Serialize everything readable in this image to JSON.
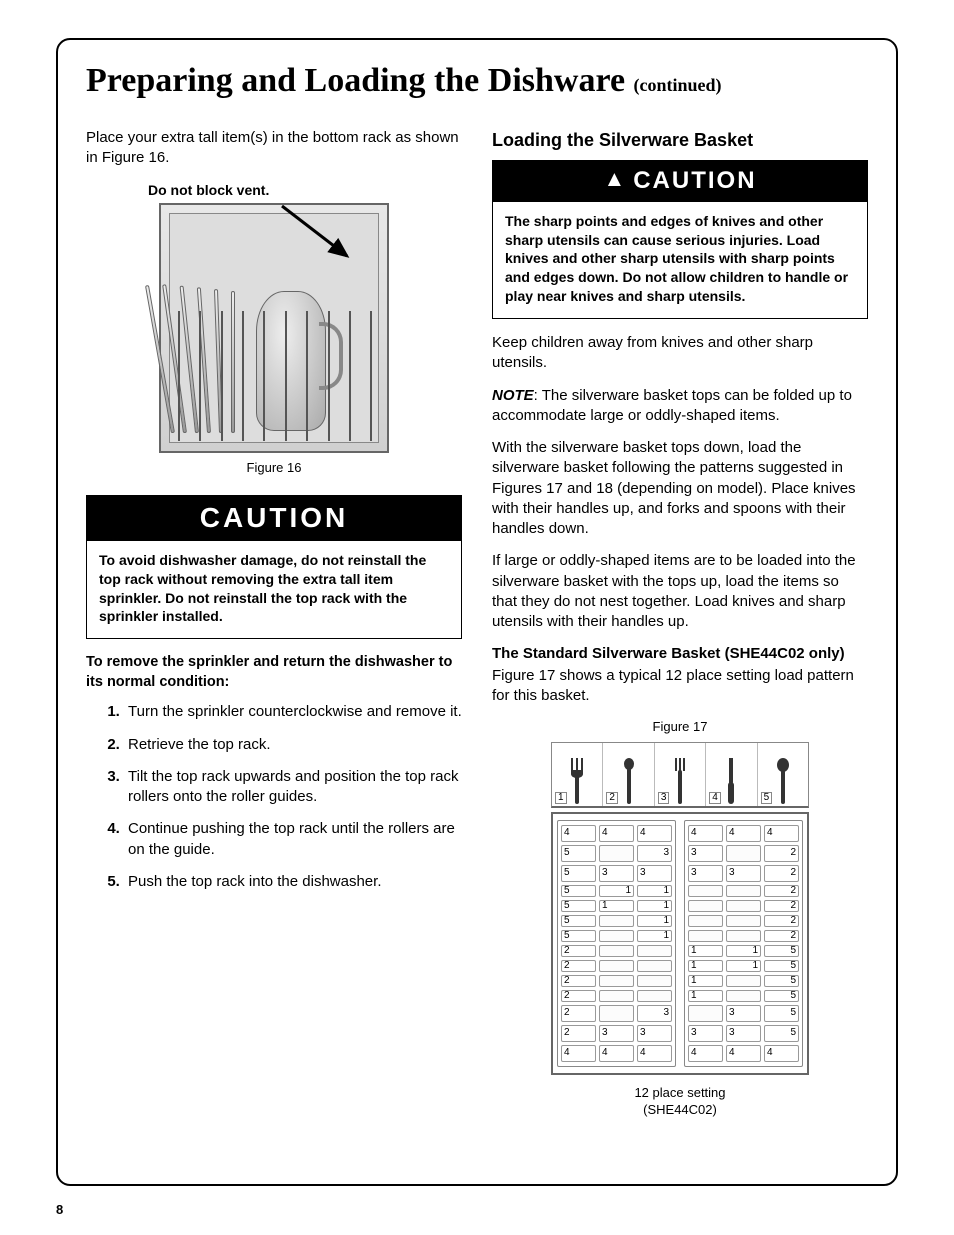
{
  "title_main": "Preparing and Loading the Dishware",
  "title_cont": "(continued)",
  "left": {
    "intro": "Place your extra tall item(s) in the bottom rack as shown in Figure 16.",
    "vent_label": "Do not block vent.",
    "fig16_caption": "Figure 16",
    "caution_label": "CAUTION",
    "caution_body": "To avoid dishwasher damage, do not reinstall the top rack without removing the extra tall item sprinkler. Do not reinstall the top rack with the sprinkler installed.",
    "remove_heading": "To remove the sprinkler and return the dishwasher to its normal condition:",
    "steps": [
      "Turn the sprinkler counterclockwise and remove it.",
      "Retrieve the top rack.",
      "Tilt the top rack upwards and position the top rack rollers onto the roller guides.",
      "Continue pushing the top rack until the rollers are on the guide.",
      "Push the top rack into the dishwasher."
    ]
  },
  "right": {
    "heading": "Loading the Silverware Basket",
    "caution_label": "CAUTION",
    "caution_body": "The sharp points and edges of knives and other sharp utensils can cause serious injuries.  Load knives and other sharp utensils with sharp points and edges down. Do not allow children to handle or play near knives and sharp utensils.",
    "p1": "Keep children away from knives and other sharp utensils.",
    "note_label": "NOTE",
    "note_body": ": The silverware basket tops can be folded up to accommodate large or oddly-shaped items.",
    "p2": "With the silverware basket tops down, load the silverware basket following the patterns suggested in Figures 17 and 18 (depending on model). Place knives with their handles up, and forks and spoons with their handles down.",
    "p3": "If large or oddly-shaped items are to be loaded into the silverware basket with the tops up, load the items so that they do not nest together. Load knives and sharp utensils with their handles up.",
    "sub_heading": "The Standard Silverware Basket (SHE44C02 only)",
    "sub_body": "Figure 17 shows a typical 12 place setting load pattern for this basket.",
    "fig17_top": "Figure 17",
    "legend_nums": [
      "1",
      "2",
      "3",
      "4",
      "5"
    ],
    "fig17_bottom1": "12 place setting",
    "fig17_bottom2": "(SHE44C02)"
  },
  "grid": {
    "left_section": [
      [
        {
          "t": "4"
        },
        {
          "t": "4"
        },
        {
          "t": "4"
        }
      ],
      [
        {
          "t": "5"
        },
        {
          "t": ""
        },
        {
          "t": "3",
          "r": true
        }
      ],
      [
        {
          "t": "5"
        },
        {
          "t": "3"
        },
        {
          "t": "3"
        }
      ],
      [
        {
          "t": "5"
        },
        {
          "t": "1",
          "r": true
        },
        {
          "t": "1",
          "r": true
        }
      ],
      [
        {
          "t": "5"
        },
        {
          "t": "1"
        },
        {
          "t": "1",
          "r": true
        }
      ],
      [
        {
          "t": "5"
        },
        {
          "t": ""
        },
        {
          "t": "1",
          "r": true
        }
      ],
      [
        {
          "t": "5"
        },
        {
          "t": ""
        },
        {
          "t": "1",
          "r": true
        }
      ],
      [
        {
          "t": "2"
        },
        {
          "t": ""
        },
        {
          "t": ""
        }
      ],
      [
        {
          "t": "2"
        },
        {
          "t": ""
        },
        {
          "t": ""
        }
      ],
      [
        {
          "t": "2"
        },
        {
          "t": ""
        },
        {
          "t": ""
        }
      ],
      [
        {
          "t": "2"
        },
        {
          "t": ""
        },
        {
          "t": ""
        }
      ],
      [
        {
          "t": "2"
        },
        {
          "t": ""
        },
        {
          "t": "3",
          "r": true
        }
      ],
      [
        {
          "t": "2"
        },
        {
          "t": "3"
        },
        {
          "t": "3"
        }
      ],
      [
        {
          "t": "4"
        },
        {
          "t": "4"
        },
        {
          "t": "4"
        }
      ]
    ],
    "right_section": [
      [
        {
          "t": "4"
        },
        {
          "t": "4"
        },
        {
          "t": "4"
        }
      ],
      [
        {
          "t": "3"
        },
        {
          "t": ""
        },
        {
          "t": "2",
          "r": true
        }
      ],
      [
        {
          "t": "3"
        },
        {
          "t": "3"
        },
        {
          "t": "2",
          "r": true
        }
      ],
      [
        {
          "t": ""
        },
        {
          "t": ""
        },
        {
          "t": "2",
          "r": true
        }
      ],
      [
        {
          "t": ""
        },
        {
          "t": ""
        },
        {
          "t": "2",
          "r": true
        }
      ],
      [
        {
          "t": ""
        },
        {
          "t": ""
        },
        {
          "t": "2",
          "r": true
        }
      ],
      [
        {
          "t": ""
        },
        {
          "t": ""
        },
        {
          "t": "2",
          "r": true
        }
      ],
      [
        {
          "t": "1"
        },
        {
          "t": "1",
          "r": true
        },
        {
          "t": "5",
          "r": true
        }
      ],
      [
        {
          "t": "1"
        },
        {
          "t": "1",
          "r": true
        },
        {
          "t": "5",
          "r": true
        }
      ],
      [
        {
          "t": "1"
        },
        {
          "t": ""
        },
        {
          "t": "5",
          "r": true
        }
      ],
      [
        {
          "t": "1"
        },
        {
          "t": ""
        },
        {
          "t": "5",
          "r": true
        }
      ],
      [
        {
          "t": ""
        },
        {
          "t": "3"
        },
        {
          "t": "5",
          "r": true
        }
      ],
      [
        {
          "t": "3"
        },
        {
          "t": "3"
        },
        {
          "t": "5",
          "r": true
        }
      ],
      [
        {
          "t": "4"
        },
        {
          "t": "4"
        },
        {
          "t": "4"
        }
      ]
    ],
    "short_rows": [
      3,
      4,
      5,
      6,
      7,
      8,
      9,
      10
    ]
  },
  "page_number": "8",
  "colors": {
    "black": "#000000",
    "border": "#666666",
    "light": "#e0e0e0"
  }
}
